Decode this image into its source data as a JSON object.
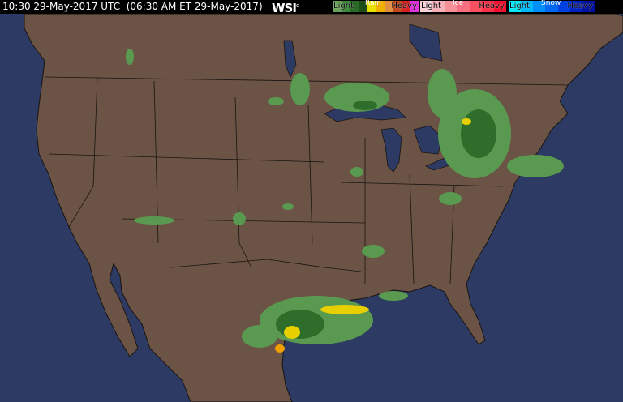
{
  "header": {
    "timestamp": "10:30 29-May-2017 UTC  (06:30 AM ET 29-May-2017)",
    "logo": "WSI"
  },
  "legend": {
    "rain": {
      "title": "Rain",
      "light": "Light",
      "heavy": "Heavy",
      "colors": [
        "#6aa05a",
        "#3e8a3a",
        "#2a6a26",
        "#1c4e1a",
        "#e8e000",
        "#f0b000",
        "#e09040",
        "#c04a20",
        "#d82020",
        "#e030e0"
      ]
    },
    "ice": {
      "title": "Ice",
      "light": "Light",
      "heavy": "Heavy",
      "colors": [
        "#f8d0d8",
        "#f8b0b8",
        "#f89098",
        "#f87080",
        "#f85060",
        "#f83048",
        "#f81030"
      ]
    },
    "snow": {
      "title": "Snow",
      "light": "Light",
      "heavy": "Heavy",
      "colors": [
        "#00e8f8",
        "#00b8f8",
        "#0090f8",
        "#0068f0",
        "#0040e0",
        "#0020c0",
        "#0010a0"
      ]
    }
  },
  "map": {
    "ocean_color": "#2c3a64",
    "land_color": "#6b5446",
    "border_color": "#1a1410",
    "precip_light": "#5a9a50",
    "precip_mid": "#2e6e2a",
    "precip_heavy": "#e8d000"
  }
}
